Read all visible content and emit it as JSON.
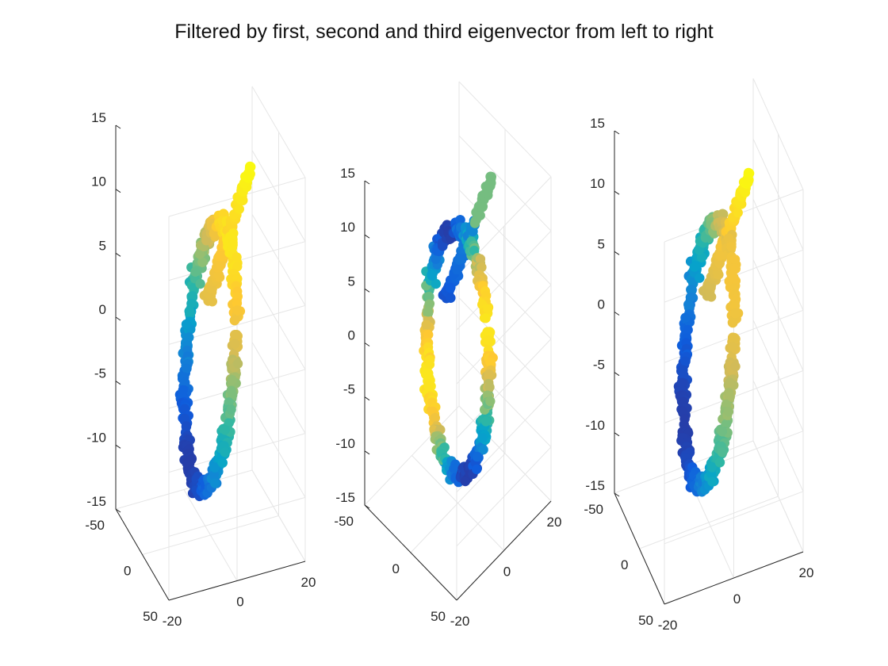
{
  "title": "Filtered by first, second and third eigenvector from left to right",
  "colormap": [
    "#352a87",
    "#0f5cdd",
    "#1481d6",
    "#06a4ca",
    "#2eb7a4",
    "#87bf77",
    "#d1bb59",
    "#fec832",
    "#f9fb0e"
  ],
  "colors": {
    "axis": "#262626",
    "grid": "#e6e6e6"
  },
  "chart_data": [
    {
      "type": "scatter",
      "view": "oblique-left",
      "title": "",
      "axes": {
        "x": {
          "range": [
            -20,
            20
          ],
          "ticks": [
            -20,
            0,
            20
          ],
          "tick_labels": [
            "-20",
            "0",
            "20"
          ]
        },
        "y": {
          "range": [
            -50,
            50
          ],
          "ticks": [
            -50,
            0,
            50
          ],
          "tick_labels": [
            "-50",
            "0",
            "50"
          ]
        },
        "z": {
          "range": [
            -15,
            15
          ],
          "ticks": [
            -15,
            -10,
            -5,
            0,
            5,
            10,
            15
          ],
          "tick_labels": [
            "-15",
            "-10",
            "-5",
            "0",
            "5",
            "10",
            "15"
          ]
        }
      },
      "grid": true,
      "color_by": "first eigenvector",
      "points_description": "closed ring with a tail rising toward z=15"
    },
    {
      "type": "scatter",
      "view": "diagonal",
      "title": "",
      "axes": {
        "x": {
          "range": [
            -20,
            20
          ],
          "ticks": [
            -20,
            0,
            20
          ],
          "tick_labels": [
            "-20",
            "0",
            "20"
          ]
        },
        "y": {
          "range": [
            -50,
            50
          ],
          "ticks": [
            -50,
            0,
            50
          ],
          "tick_labels": [
            "-50",
            "0",
            "50"
          ]
        },
        "z": {
          "range": [
            -15,
            15
          ],
          "ticks": [
            -15,
            -10,
            -5,
            0,
            5,
            10,
            15
          ],
          "tick_labels": [
            "-15",
            "-10",
            "-5",
            "0",
            "5",
            "10",
            "15"
          ]
        }
      },
      "grid": true,
      "color_by": "second eigenvector",
      "points_description": "closed ring with a tail rising toward z=15"
    },
    {
      "type": "scatter",
      "view": "oblique-right",
      "title": "",
      "axes": {
        "x": {
          "range": [
            -20,
            20
          ],
          "ticks": [
            -20,
            0,
            20
          ],
          "tick_labels": [
            "-20",
            "0",
            "20"
          ]
        },
        "y": {
          "range": [
            -50,
            50
          ],
          "ticks": [
            -50,
            0,
            50
          ],
          "tick_labels": [
            "-50",
            "0",
            "50"
          ]
        },
        "z": {
          "range": [
            -15,
            15
          ],
          "ticks": [
            -15,
            -10,
            -5,
            0,
            5,
            10,
            15
          ],
          "tick_labels": [
            "-15",
            "-10",
            "-5",
            "0",
            "5",
            "10",
            "15"
          ]
        }
      },
      "grid": true,
      "color_by": "third eigenvector",
      "points_description": "closed ring with a tail rising toward z=15"
    }
  ]
}
